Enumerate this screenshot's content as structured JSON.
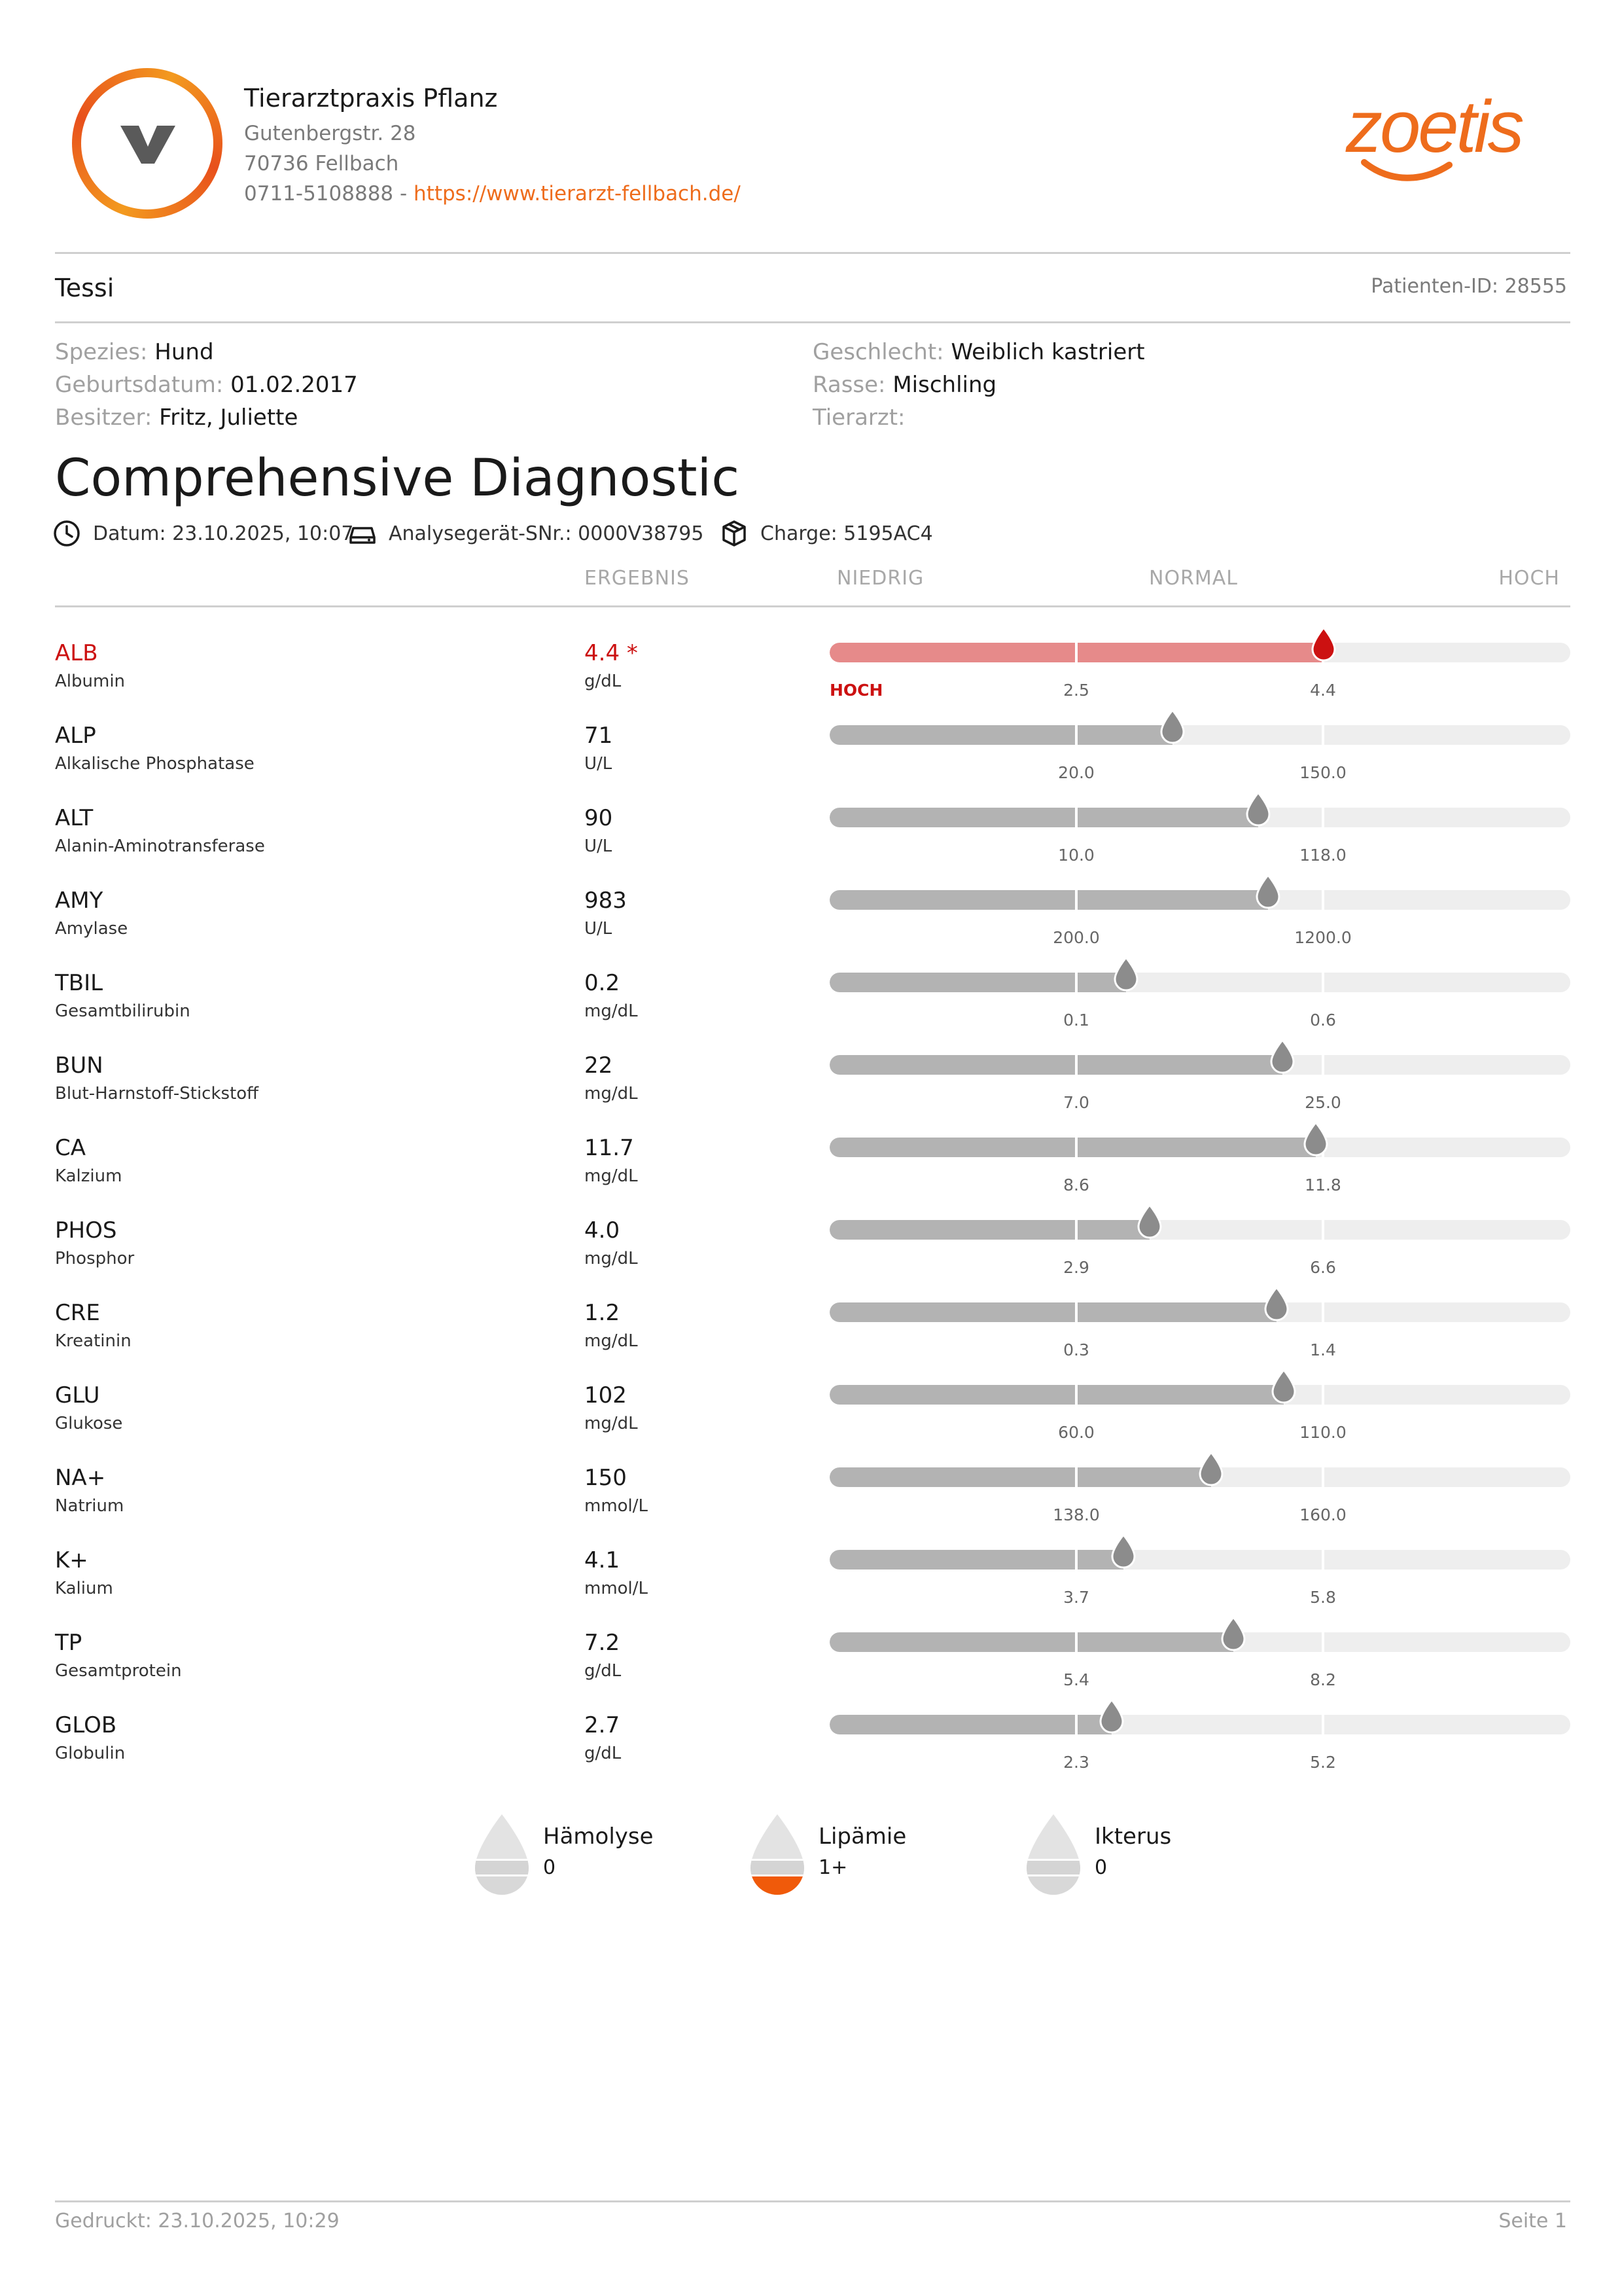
{
  "clinic": {
    "name": "Tierarztpraxis Pflanz",
    "street": "Gutenbergstr. 28",
    "city": "70736 Fellbach",
    "phone": "0711-5108888 - ",
    "website": "https://www.tierarzt-fellbach.de/",
    "logo_letter": "v"
  },
  "brand": {
    "name": "zoetis",
    "color": "#ee6c1c"
  },
  "patient": {
    "name": "Tessi",
    "id_label": "Patienten-ID: 28555",
    "species_label": "Spezies:",
    "species": "Hund",
    "birth_label": "Geburtsdatum:",
    "birth": "01.02.2017",
    "owner_label": "Besitzer:",
    "owner": "Fritz, Juliette",
    "sex_label": "Geschlecht:",
    "sex": "Weiblich kastriert",
    "breed_label": "Rasse:",
    "breed": "Mischling",
    "vet_label": "Tierarzt:",
    "vet": ""
  },
  "report": {
    "title": "Comprehensive Diagnostic",
    "date": "Datum: 23.10.2025, 10:07",
    "analyzer": "Analysegerät-SNr.: 0000V38795",
    "batch": "Charge: 5195AC4"
  },
  "columns": {
    "result": "ERGEBNIS",
    "low": "NIEDRIG",
    "normal": "NORMAL",
    "high": "HOCH"
  },
  "results": [
    {
      "code": "ALB",
      "name": "Albumin",
      "value": "4.4 *",
      "unit": "g/dL",
      "low": "2.5",
      "high": "4.4",
      "flag": "HOCH",
      "pos": 0.667
    },
    {
      "code": "ALP",
      "name": "Alkalische Phosphatase",
      "value": "71",
      "unit": "U/L",
      "low": "20.0",
      "high": "150.0",
      "flag": "",
      "pos": 0.463
    },
    {
      "code": "ALT",
      "name": "Alanin-Aminotransferase",
      "value": "90",
      "unit": "U/L",
      "low": "10.0",
      "high": "118.0",
      "flag": "",
      "pos": 0.579
    },
    {
      "code": "AMY",
      "name": "Amylase",
      "value": "983",
      "unit": "U/L",
      "low": "200.0",
      "high": "1200.0",
      "flag": "",
      "pos": 0.592
    },
    {
      "code": "TBIL",
      "name": "Gesamtbilirubin",
      "value": "0.2",
      "unit": "mg/dL",
      "low": "0.1",
      "high": "0.6",
      "flag": "",
      "pos": 0.4
    },
    {
      "code": "BUN",
      "name": "Blut-Harnstoff-Stickstoff",
      "value": "22",
      "unit": "mg/dL",
      "low": "7.0",
      "high": "25.0",
      "flag": "",
      "pos": 0.611
    },
    {
      "code": "CA",
      "name": "Kalzium",
      "value": "11.7",
      "unit": "mg/dL",
      "low": "8.6",
      "high": "11.8",
      "flag": "",
      "pos": 0.656
    },
    {
      "code": "PHOS",
      "name": "Phosphor",
      "value": "4.0",
      "unit": "mg/dL",
      "low": "2.9",
      "high": "6.6",
      "flag": "",
      "pos": 0.432
    },
    {
      "code": "CRE",
      "name": "Kreatinin",
      "value": "1.2",
      "unit": "mg/dL",
      "low": "0.3",
      "high": "1.4",
      "flag": "",
      "pos": 0.603
    },
    {
      "code": "GLU",
      "name": "Glukose",
      "value": "102",
      "unit": "mg/dL",
      "low": "60.0",
      "high": "110.0",
      "flag": "",
      "pos": 0.613
    },
    {
      "code": "NA+",
      "name": "Natrium",
      "value": "150",
      "unit": "mmol/L",
      "low": "138.0",
      "high": "160.0",
      "flag": "",
      "pos": 0.515
    },
    {
      "code": "K+",
      "name": "Kalium",
      "value": "4.1",
      "unit": "mmol/L",
      "low": "3.7",
      "high": "5.8",
      "flag": "",
      "pos": 0.397
    },
    {
      "code": "TP",
      "name": "Gesamtprotein",
      "value": "7.2",
      "unit": "g/dL",
      "low": "5.4",
      "high": "8.2",
      "flag": "",
      "pos": 0.545
    },
    {
      "code": "GLOB",
      "name": "Globulin",
      "value": "2.7",
      "unit": "g/dL",
      "low": "2.3",
      "high": "5.2",
      "flag": "",
      "pos": 0.381
    }
  ],
  "indices": [
    {
      "name": "Hämolyse",
      "value": "0",
      "level": 0
    },
    {
      "name": "Lipämie",
      "value": "1+",
      "level": 1
    },
    {
      "name": "Ikterus",
      "value": "0",
      "level": 0
    }
  ],
  "footer": {
    "printed": "Gedruckt: 23.10.2025, 10:29",
    "page": "Seite 1"
  },
  "colors": {
    "alert": "#cc1111",
    "alert_fill": "#e68a8a",
    "normal_fill": "#b3b3b3",
    "track": "#eeeeee",
    "index_level": "#f05a0a"
  }
}
